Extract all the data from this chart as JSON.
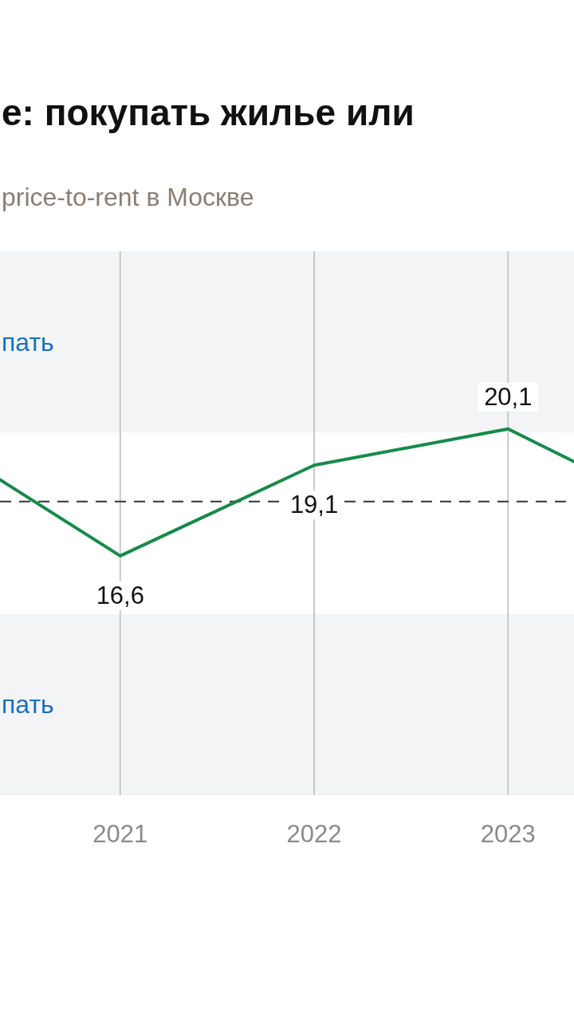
{
  "chart_data": {
    "type": "line",
    "title": "е: покупать жилье или",
    "subtitle": "price-to-rent в Москве",
    "x": [
      2020.38,
      2021,
      2022,
      2023,
      2023.34
    ],
    "series": [
      {
        "color": "#168a4a",
        "values": [
          18.7,
          16.6,
          19.1,
          20.1,
          19.2
        ],
        "value_labels": [
          null,
          "16,6",
          "19,1",
          "20,1",
          null
        ]
      }
    ],
    "xlim": [
      2020.38,
      2023.34
    ],
    "xticks": [
      2021,
      2022,
      2023
    ],
    "ylim": [
      10,
      25
    ],
    "tick_labels": "x",
    "grid": "x",
    "marker": "none",
    "line_style": "solid",
    "ref_lines": [
      {
        "axis": "y",
        "value": 18.1,
        "color": "#333333",
        "line_style": "dashed"
      }
    ],
    "bands": [
      {
        "axis": "y",
        "from": 20,
        "to": 25,
        "label": "пать",
        "color": "#f2f4f6"
      },
      {
        "axis": "y",
        "from": 10,
        "to": 15,
        "label": "пать",
        "color": "#f2f4f6"
      }
    ]
  }
}
